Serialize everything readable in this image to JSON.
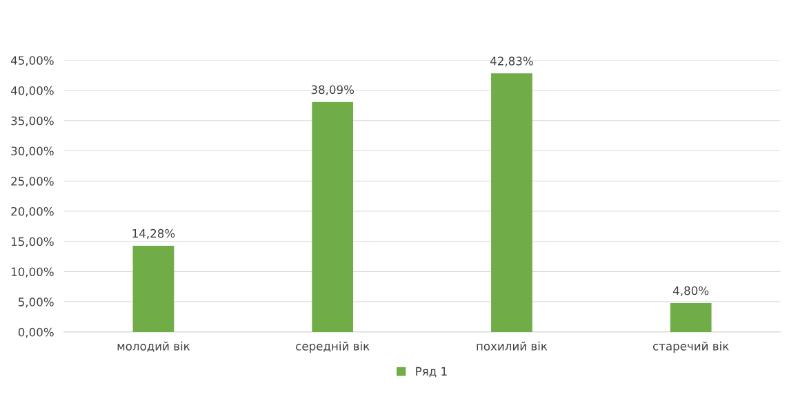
{
  "chart_data": {
    "type": "bar",
    "categories": [
      "молодий вік",
      "середній вік",
      "похилий вік",
      "старечий вік"
    ],
    "series": [
      {
        "name": "Ряд 1",
        "color": "#70ad47",
        "values": [
          14.28,
          38.09,
          42.83,
          4.8
        ],
        "value_labels": [
          "14,28%",
          "38,09%",
          "42,83%",
          "4,80%"
        ]
      }
    ],
    "ylim": [
      0,
      45
    ],
    "yticks": [
      {
        "value": 0,
        "label": "0,00%"
      },
      {
        "value": 5,
        "label": "5,00%"
      },
      {
        "value": 10,
        "label": "10,00%"
      },
      {
        "value": 15,
        "label": "15,00%"
      },
      {
        "value": 20,
        "label": "20,00%"
      },
      {
        "value": 25,
        "label": "25,00%"
      },
      {
        "value": 30,
        "label": "30,00%"
      },
      {
        "value": 35,
        "label": "35,00%"
      },
      {
        "value": 40,
        "label": "40,00%"
      },
      {
        "value": 45,
        "label": "45,00%"
      }
    ],
    "grid": "y",
    "legend": "bottom"
  }
}
